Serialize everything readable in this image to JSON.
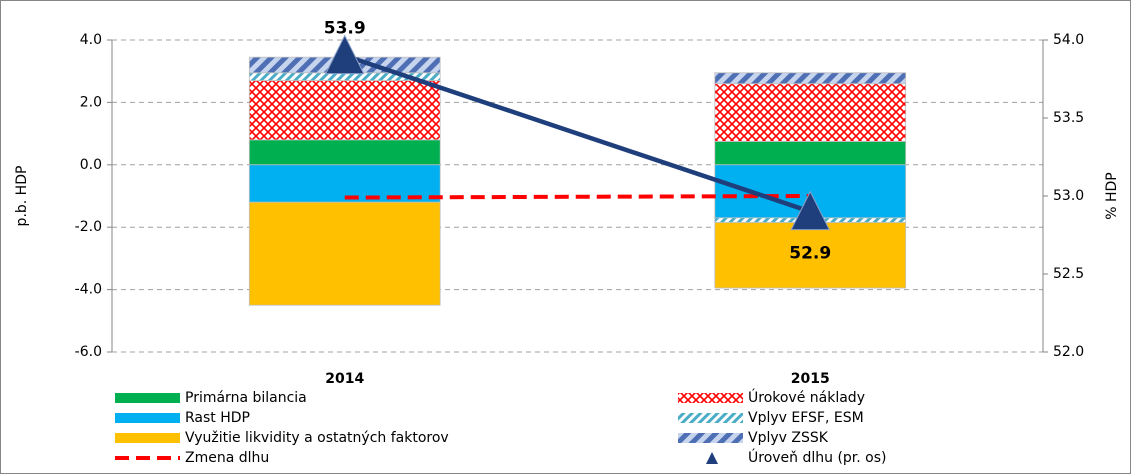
{
  "chart_data": {
    "type": "bar",
    "stacked": true,
    "categories": [
      "2014",
      "2015"
    ],
    "ylabel": "p.b. HDP",
    "y2label": "% HDP",
    "ylim": [
      -6,
      4
    ],
    "yticks": [
      {
        "value": -6,
        "label": "-6.0"
      },
      {
        "value": -4,
        "label": "-4.0"
      },
      {
        "value": -2,
        "label": "-2.0"
      },
      {
        "value": 0,
        "label": "0.0"
      },
      {
        "value": 2,
        "label": "2.0"
      },
      {
        "value": 4,
        "label": "4.0"
      }
    ],
    "y2lim": [
      52,
      54
    ],
    "y2ticks": [
      {
        "value": 52,
        "label": "52.0"
      },
      {
        "value": 52.5,
        "label": "52.5"
      },
      {
        "value": 53,
        "label": "53.0"
      },
      {
        "value": 53.5,
        "label": "53.5"
      },
      {
        "value": 54,
        "label": "54.0"
      }
    ],
    "grid": true,
    "legend": "bottom",
    "series": [
      {
        "name": "Primárna bilancia",
        "color": "#00b050",
        "values": [
          0.8,
          0.75
        ]
      },
      {
        "name": "Rast HDP",
        "color": "#00b0f0",
        "values": [
          -1.2,
          -1.7
        ]
      },
      {
        "name": "Využitie likvidity a ostatných faktorov",
        "color": "#ffc000",
        "values": [
          -3.3,
          -2.1
        ]
      },
      {
        "name": "Zmena dlhu",
        "color": "#ff0000",
        "type": "line",
        "dashed": true,
        "values": [
          -1.05,
          -1.0
        ]
      },
      {
        "name": "Úrokové náklady",
        "color": "#ff0000",
        "hatch": "cross",
        "values": [
          1.9,
          1.85
        ]
      },
      {
        "name": "Vplyv EFSF, ESM",
        "color": "#4bacc6",
        "hatch": "diagonal",
        "values": [
          0.25,
          -0.15
        ]
      },
      {
        "name": "Vplyv ZSSK",
        "color": "#4f6fb5",
        "hatch": "diagonal",
        "values": [
          0.5,
          0.35
        ]
      },
      {
        "name": "Úroveň dlhu (pr. os)",
        "color": "#1f3e7c",
        "type": "line",
        "axis": "y2",
        "marker": "triangle",
        "values": [
          53.9,
          52.9
        ]
      }
    ]
  }
}
